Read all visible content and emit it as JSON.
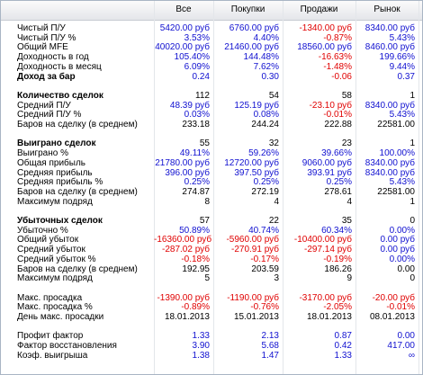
{
  "table": {
    "columns": [
      "Все",
      "Покупки",
      "Продажи",
      "Рынок"
    ],
    "negative_color": "#e00000",
    "sections": [
      {
        "rows": [
          {
            "label": "Чистый П/У",
            "values": [
              "5420.00 руб",
              "6760.00 руб",
              "-1340.00 руб",
              "8340.00 руб"
            ],
            "color": "#1010d0",
            "bold": false
          },
          {
            "label": "Чистый П/У %",
            "values": [
              "3.53%",
              "4.40%",
              "-0.87%",
              "5.43%"
            ],
            "color": "#1010d0",
            "bold": false
          },
          {
            "label": "Общий MFE",
            "values": [
              "40020.00 руб",
              "21460.00 руб",
              "18560.00 руб",
              "8460.00 руб"
            ],
            "color": "#1010d0",
            "bold": false
          },
          {
            "label": "Доходность в год",
            "values": [
              "105.40%",
              "144.48%",
              "-16.63%",
              "199.66%"
            ],
            "color": "#1010d0",
            "bold": false
          },
          {
            "label": "Доходность в месяц",
            "values": [
              "6.09%",
              "7.62%",
              "-1.48%",
              "9.44%"
            ],
            "color": "#1010d0",
            "bold": false
          },
          {
            "label": "Доход за бар",
            "values": [
              "0.24",
              "0.30",
              "-0.06",
              "0.37"
            ],
            "color": "#1010d0",
            "bold": true
          }
        ]
      },
      {
        "rows": [
          {
            "label": "Количество сделок",
            "values": [
              "112",
              "54",
              "58",
              "1"
            ],
            "color": "#000000",
            "bold": true
          },
          {
            "label": "Средний П/У",
            "values": [
              "48.39 руб",
              "125.19 руб",
              "-23.10 руб",
              "8340.00 руб"
            ],
            "color": "#1010d0",
            "bold": false
          },
          {
            "label": "Средний П/У %",
            "values": [
              "0.03%",
              "0.08%",
              "-0.01%",
              "5.43%"
            ],
            "color": "#1010d0",
            "bold": false
          },
          {
            "label": "Баров на сделку (в среднем)",
            "values": [
              "233.18",
              "244.24",
              "222.88",
              "22581.00"
            ],
            "color": "#000000",
            "bold": false
          }
        ]
      },
      {
        "rows": [
          {
            "label": "Выиграно сделок",
            "values": [
              "55",
              "32",
              "23",
              "1"
            ],
            "color": "#000000",
            "bold": true
          },
          {
            "label": "Выиграно %",
            "values": [
              "49.11%",
              "59.26%",
              "39.66%",
              "100.00%"
            ],
            "color": "#1010d0",
            "bold": false
          },
          {
            "label": "Общая прибыль",
            "values": [
              "21780.00 руб",
              "12720.00 руб",
              "9060.00 руб",
              "8340.00 руб"
            ],
            "color": "#1010d0",
            "bold": false
          },
          {
            "label": "Средняя прибыль",
            "values": [
              "396.00 руб",
              "397.50 руб",
              "393.91 руб",
              "8340.00 руб"
            ],
            "color": "#1010d0",
            "bold": false
          },
          {
            "label": "Средняя прибыль %",
            "values": [
              "0.25%",
              "0.25%",
              "0.25%",
              "5.43%"
            ],
            "color": "#1010d0",
            "bold": false
          },
          {
            "label": "Баров на сделку (в среднем)",
            "values": [
              "274.87",
              "272.19",
              "278.61",
              "22581.00"
            ],
            "color": "#000000",
            "bold": false
          },
          {
            "label": "Максимум подряд",
            "values": [
              "8",
              "4",
              "4",
              "1"
            ],
            "color": "#000000",
            "bold": false
          }
        ]
      },
      {
        "rows": [
          {
            "label": "Убыточных сделок",
            "values": [
              "57",
              "22",
              "35",
              "0"
            ],
            "color": "#000000",
            "bold": true
          },
          {
            "label": "Убыточно %",
            "values": [
              "50.89%",
              "40.74%",
              "60.34%",
              "0.00%"
            ],
            "color": "#1010d0",
            "bold": false
          },
          {
            "label": "Общий убыток",
            "values": [
              "-16360.00 руб",
              "-5960.00 руб",
              "-10400.00 руб",
              "0.00 руб"
            ],
            "color": "#1010d0",
            "bold": false
          },
          {
            "label": "Средний убыток",
            "values": [
              "-287.02 руб",
              "-270.91 руб",
              "-297.14 руб",
              "0.00 руб"
            ],
            "color": "#1010d0",
            "bold": false
          },
          {
            "label": "Средний убыток %",
            "values": [
              "-0.18%",
              "-0.17%",
              "-0.19%",
              "0.00%"
            ],
            "color": "#1010d0",
            "bold": false
          },
          {
            "label": "Баров на сделку (в среднем)",
            "values": [
              "192.95",
              "203.59",
              "186.26",
              "0.00"
            ],
            "color": "#000000",
            "bold": false
          },
          {
            "label": "Максимум подряд",
            "values": [
              "5",
              "3",
              "9",
              "0"
            ],
            "color": "#000000",
            "bold": false
          }
        ]
      },
      {
        "rows": [
          {
            "label": "Макс. просадка",
            "values": [
              "-1390.00 руб",
              "-1190.00 руб",
              "-3170.00 руб",
              "-20.00 руб"
            ],
            "color": "#1010d0",
            "bold": false
          },
          {
            "label": "Макс. просадка %",
            "values": [
              "-0.89%",
              "-0.76%",
              "-2.05%",
              "-0.01%"
            ],
            "color": "#1010d0",
            "bold": false
          },
          {
            "label": "День макс. просадки",
            "values": [
              "18.01.2013",
              "15.01.2013",
              "18.01.2013",
              "08.01.2013"
            ],
            "color": "#000000",
            "bold": false
          }
        ]
      },
      {
        "rows": [
          {
            "label": "Профит фактор",
            "values": [
              "1.33",
              "2.13",
              "0.87",
              "0.00"
            ],
            "color": "#1010d0",
            "bold": false
          },
          {
            "label": "Фактор восстановления",
            "values": [
              "3.90",
              "5.68",
              "0.42",
              "417.00"
            ],
            "color": "#1010d0",
            "bold": false
          },
          {
            "label": "Коэф. выигрыша",
            "values": [
              "1.38",
              "1.47",
              "1.33",
              "∞"
            ],
            "color": "#1010d0",
            "bold": false
          }
        ]
      }
    ]
  }
}
